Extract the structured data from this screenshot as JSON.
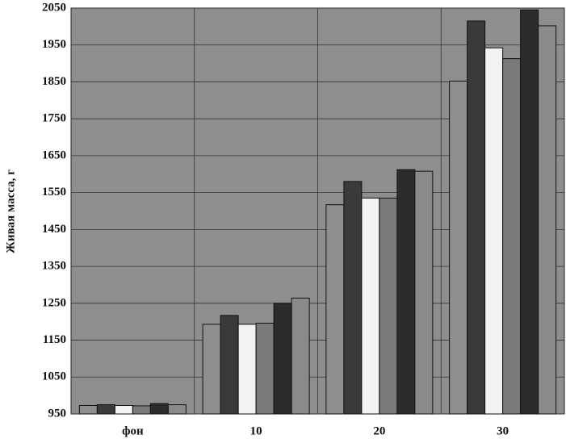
{
  "chart_data": {
    "type": "bar",
    "y_label": "Живая масса, г",
    "categories": [
      "фон",
      "10",
      "20",
      "30"
    ],
    "series": [
      {
        "color": "#8f8f8f",
        "values": [
          973,
          1193,
          1517,
          1852
        ]
      },
      {
        "color": "#3a3a3a",
        "values": [
          975,
          1217,
          1580,
          2015
        ]
      },
      {
        "color": "#f2f2f2",
        "values": [
          973,
          1193,
          1535,
          1942
        ]
      },
      {
        "color": "#7a7a7a",
        "values": [
          972,
          1196,
          1535,
          1913
        ]
      },
      {
        "color": "#2c2c2c",
        "values": [
          978,
          1250,
          1612,
          2045
        ]
      },
      {
        "color": "#8a8a8a",
        "values": [
          975,
          1264,
          1608,
          2002
        ]
      }
    ],
    "ylim": [
      950,
      2050
    ],
    "yticks": [
      950,
      1050,
      1150,
      1250,
      1350,
      1450,
      1550,
      1650,
      1750,
      1850,
      1950,
      2050
    ],
    "grid": true,
    "plot_color": "#8e8e8e"
  }
}
